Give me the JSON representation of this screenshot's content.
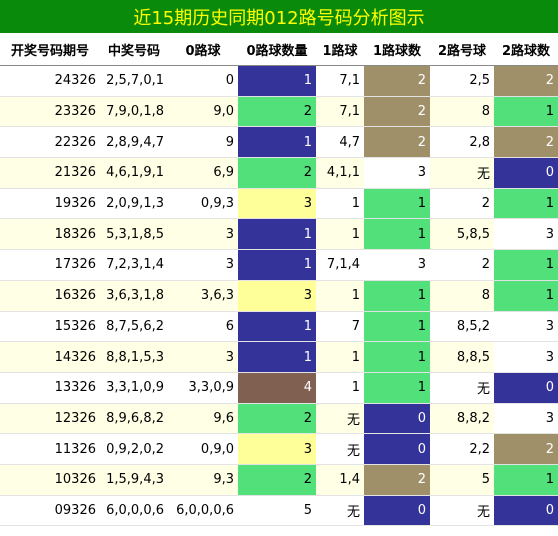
{
  "title": "近15期历史同期012路号码分析图示",
  "headers": [
    "开奖号码期号",
    "中奖号码",
    "0路球",
    "0路球数量",
    "1路球",
    "1路球数",
    "2路号球",
    "2路球数"
  ],
  "colors": {
    "title_bg": "#0a8a0a",
    "title_text": "#ffff00",
    "blue": "#333399",
    "green": "#52e07a",
    "yellow": "#ffff99",
    "brown": "#806050",
    "tan": "#a0906a",
    "alt_row": "#ffffe6"
  },
  "rows": [
    {
      "period": "24326",
      "numbers": "2,5,7,0,1",
      "r0": "0",
      "c0": "1",
      "r1": "7,1",
      "c1": "2",
      "r2": "2,5",
      "c2": "2"
    },
    {
      "period": "23326",
      "numbers": "7,9,0,1,8",
      "r0": "9,0",
      "c0": "2",
      "r1": "7,1",
      "c1": "2",
      "r2": "8",
      "c2": "1"
    },
    {
      "period": "22326",
      "numbers": "2,8,9,4,7",
      "r0": "9",
      "c0": "1",
      "r1": "4,7",
      "c1": "2",
      "r2": "2,8",
      "c2": "2"
    },
    {
      "period": "21326",
      "numbers": "4,6,1,9,1",
      "r0": "6,9",
      "c0": "2",
      "r1": "4,1,1",
      "c1": "3",
      "r2": "无",
      "c2": "0"
    },
    {
      "period": "19326",
      "numbers": "2,0,9,1,3",
      "r0": "0,9,3",
      "c0": "3",
      "r1": "1",
      "c1": "1",
      "r2": "2",
      "c2": "1"
    },
    {
      "period": "18326",
      "numbers": "5,3,1,8,5",
      "r0": "3",
      "c0": "1",
      "r1": "1",
      "c1": "1",
      "r2": "5,8,5",
      "c2": "3"
    },
    {
      "period": "17326",
      "numbers": "7,2,3,1,4",
      "r0": "3",
      "c0": "1",
      "r1": "7,1,4",
      "c1": "3",
      "r2": "2",
      "c2": "1"
    },
    {
      "period": "16326",
      "numbers": "3,6,3,1,8",
      "r0": "3,6,3",
      "c0": "3",
      "r1": "1",
      "c1": "1",
      "r2": "8",
      "c2": "1"
    },
    {
      "period": "15326",
      "numbers": "8,7,5,6,2",
      "r0": "6",
      "c0": "1",
      "r1": "7",
      "c1": "1",
      "r2": "8,5,2",
      "c2": "3"
    },
    {
      "period": "14326",
      "numbers": "8,8,1,5,3",
      "r0": "3",
      "c0": "1",
      "r1": "1",
      "c1": "1",
      "r2": "8,8,5",
      "c2": "3"
    },
    {
      "period": "13326",
      "numbers": "3,3,1,0,9",
      "r0": "3,3,0,9",
      "c0": "4",
      "r1": "1",
      "c1": "1",
      "r2": "无",
      "c2": "0"
    },
    {
      "period": "12326",
      "numbers": "8,9,6,8,2",
      "r0": "9,6",
      "c0": "2",
      "r1": "无",
      "c1": "0",
      "r2": "8,8,2",
      "c2": "3"
    },
    {
      "period": "11326",
      "numbers": "0,9,2,0,2",
      "r0": "0,9,0",
      "c0": "3",
      "r1": "无",
      "c1": "0",
      "r2": "2,2",
      "c2": "2"
    },
    {
      "period": "10326",
      "numbers": "1,5,9,4,3",
      "r0": "9,3",
      "c0": "2",
      "r1": "1,4",
      "c1": "2",
      "r2": "5",
      "c2": "1"
    },
    {
      "period": "09326",
      "numbers": "6,0,0,0,6",
      "r0": "6,0,0,0,6",
      "c0": "5",
      "r1": "无",
      "c1": "0",
      "r2": "无",
      "c2": "0"
    }
  ]
}
